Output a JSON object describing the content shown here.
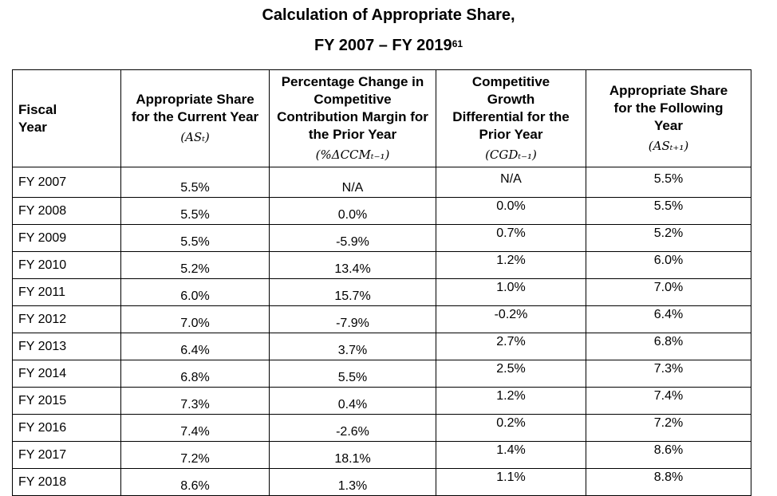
{
  "title": {
    "line1": "Calculation of Appropriate Share,",
    "line2": "FY 2007 – FY 2019",
    "footnote": "61"
  },
  "headers": {
    "fiscal_year": "Fiscal Year",
    "as_current": "Appropriate Share for the Current Year",
    "as_current_sym": "(ASₜ)",
    "ccm": "Percentage Change in Competitive Contribution Margin for the Prior Year",
    "ccm_sym": "(%ΔCCMₜ₋₁)",
    "cgd": "Competitive Growth Differential for the Prior Year",
    "cgd_sym": "(CGDₜ₋₁)",
    "as_following": "Appropriate Share for the Following Year",
    "as_following_sym": "(ASₜ₊₁)"
  },
  "rows": [
    {
      "year": "FY 2007",
      "as_current": "5.5%",
      "ccm": "N/A",
      "cgd": "N/A",
      "as_following": "5.5%"
    },
    {
      "year": "FY 2008",
      "as_current": "5.5%",
      "ccm": "0.0%",
      "cgd": "0.0%",
      "as_following": "5.5%"
    },
    {
      "year": "FY 2009",
      "as_current": "5.5%",
      "ccm": "-5.9%",
      "cgd": "0.7%",
      "as_following": "5.2%"
    },
    {
      "year": "FY 2010",
      "as_current": "5.2%",
      "ccm": "13.4%",
      "cgd": "1.2%",
      "as_following": "6.0%"
    },
    {
      "year": "FY 2011",
      "as_current": "6.0%",
      "ccm": "15.7%",
      "cgd": "1.0%",
      "as_following": "7.0%"
    },
    {
      "year": "FY 2012",
      "as_current": "7.0%",
      "ccm": "-7.9%",
      "cgd": "-0.2%",
      "as_following": "6.4%"
    },
    {
      "year": "FY 2013",
      "as_current": "6.4%",
      "ccm": "3.7%",
      "cgd": "2.7%",
      "as_following": "6.8%"
    },
    {
      "year": "FY 2014",
      "as_current": "6.8%",
      "ccm": "5.5%",
      "cgd": "2.5%",
      "as_following": "7.3%"
    },
    {
      "year": "FY 2015",
      "as_current": "7.3%",
      "ccm": "0.4%",
      "cgd": "1.2%",
      "as_following": "7.4%"
    },
    {
      "year": "FY 2016",
      "as_current": "7.4%",
      "ccm": "-2.6%",
      "cgd": "0.2%",
      "as_following": "7.2%"
    },
    {
      "year": "FY 2017",
      "as_current": "7.2%",
      "ccm": "18.1%",
      "cgd": "1.4%",
      "as_following": "8.6%"
    },
    {
      "year": "FY 2018",
      "as_current": "8.6%",
      "ccm": "1.3%",
      "cgd": "1.1%",
      "as_following": "8.8%"
    }
  ]
}
